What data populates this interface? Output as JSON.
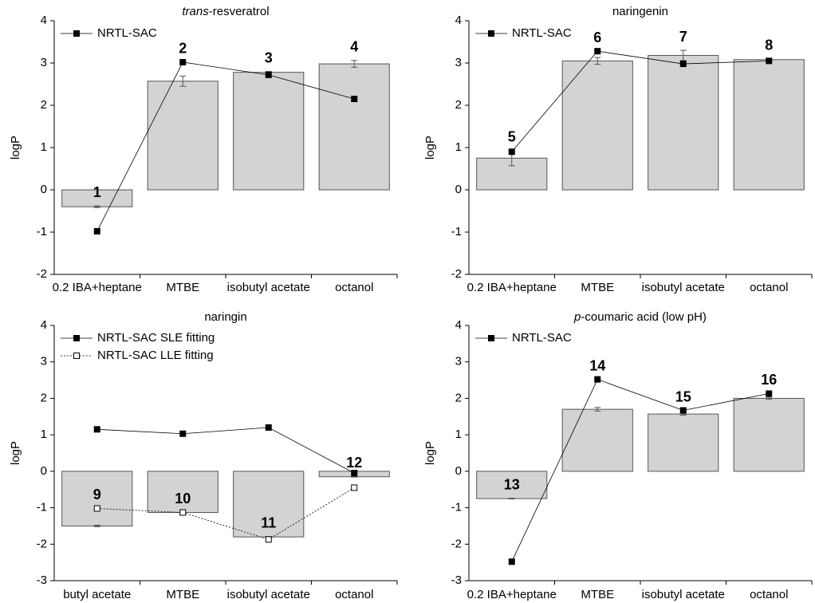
{
  "chart_data": [
    {
      "type": "bar",
      "title": [
        {
          "text": "trans",
          "italic": true
        },
        {
          "text": "-resveratrol"
        }
      ],
      "y_label": "logP",
      "categories": [
        "0.2 IBA+heptane",
        "MTBE",
        "isobutyl acetate",
        "octanol"
      ],
      "bars": {
        "values": [
          -0.4,
          2.57,
          2.78,
          2.98
        ],
        "errors": [
          0.02,
          0.12,
          0.02,
          0.08
        ],
        "color": "#d3d3d3"
      },
      "bar_labels": [
        "1",
        "2",
        "3",
        "4"
      ],
      "series": [
        {
          "name": "NRTL-SAC",
          "color": "#000000",
          "marker": "filled",
          "dash": "solid",
          "values": [
            -0.98,
            3.02,
            2.72,
            2.15
          ]
        }
      ],
      "ylim": [
        -2,
        4
      ],
      "yticks": [
        -2,
        -1,
        0,
        1,
        2,
        3,
        4
      ],
      "legend": "upper left"
    },
    {
      "type": "bar",
      "title": [
        {
          "text": "naringenin",
          "italic": false
        }
      ],
      "y_label": "logP",
      "categories": [
        "0.2 IBA+heptane",
        "MTBE",
        "isobutyl acetate",
        "octanol"
      ],
      "bars": {
        "values": [
          0.75,
          3.05,
          3.18,
          3.08
        ],
        "errors": [
          0.18,
          0.08,
          0.12,
          0.02
        ],
        "color": "#d3d3d3"
      },
      "bar_labels": [
        "5",
        "6",
        "7",
        "8"
      ],
      "series": [
        {
          "name": "NRTL-SAC",
          "color": "#000000",
          "marker": "filled",
          "dash": "solid",
          "values": [
            0.9,
            3.28,
            2.98,
            3.05
          ]
        }
      ],
      "ylim": [
        -2,
        4
      ],
      "yticks": [
        -2,
        -1,
        0,
        1,
        2,
        3,
        4
      ],
      "legend": "upper left"
    },
    {
      "type": "bar",
      "title": [
        {
          "text": "naringin",
          "italic": false
        }
      ],
      "y_label": "logP",
      "categories": [
        "butyl acetate",
        "MTBE",
        "isobutyl acetate",
        "octanol"
      ],
      "bars": {
        "values": [
          -1.5,
          -1.13,
          -1.8,
          -0.15
        ],
        "errors": [
          0.02,
          0.01,
          0.01,
          0.01
        ],
        "color": "#d3d3d3"
      },
      "bar_labels": [
        "9",
        "10",
        "11",
        "12"
      ],
      "series": [
        {
          "name": "NRTL-SAC SLE fitting",
          "color": "#000000",
          "marker": "filled",
          "dash": "solid",
          "values": [
            1.15,
            1.03,
            1.2,
            -0.05
          ]
        },
        {
          "name": "NRTL-SAC LLE fitting",
          "color": "#000000",
          "marker": "open",
          "dash": "dotted",
          "values": [
            -1.02,
            -1.13,
            -1.87,
            -0.45
          ]
        }
      ],
      "ylim": [
        -3,
        4
      ],
      "yticks": [
        -3,
        -2,
        -1,
        0,
        1,
        2,
        3,
        4
      ],
      "legend": "upper left"
    },
    {
      "type": "bar",
      "title": [
        {
          "text": "p",
          "italic": true
        },
        {
          "text": "-coumaric acid (low pH)"
        }
      ],
      "y_label": "logP",
      "categories": [
        "0.2 IBA+heptane",
        "MTBE",
        "isobutyl acetate",
        "octanol"
      ],
      "bars": {
        "values": [
          -0.75,
          1.7,
          1.57,
          2.0
        ],
        "errors": [
          0.01,
          0.05,
          0.03,
          0.03
        ],
        "color": "#d3d3d3"
      },
      "bar_labels": [
        "13",
        "14",
        "15",
        "16"
      ],
      "series": [
        {
          "name": "NRTL-SAC",
          "color": "#000000",
          "marker": "filled",
          "dash": "solid",
          "values": [
            -2.48,
            2.52,
            1.67,
            2.13
          ]
        }
      ],
      "ylim": [
        -3,
        4
      ],
      "yticks": [
        -3,
        -2,
        -1,
        0,
        1,
        2,
        3,
        4
      ],
      "legend": "upper left"
    }
  ]
}
